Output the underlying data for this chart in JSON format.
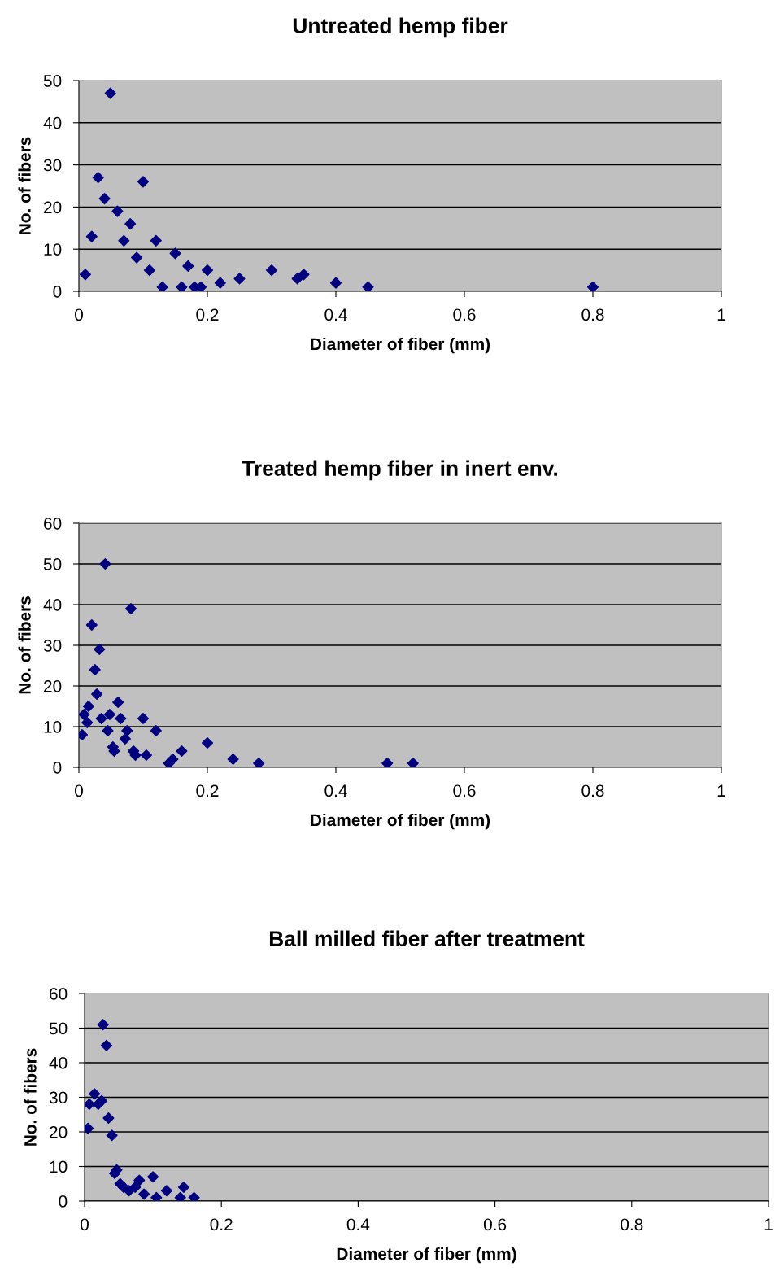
{
  "chart_data": [
    {
      "type": "scatter",
      "title": "Untreated hemp fiber",
      "xlabel": "Diameter of fiber (mm)",
      "ylabel": "No. of fibers",
      "xlim": [
        0,
        1
      ],
      "xticks": [
        0,
        0.2,
        0.4,
        0.6,
        0.8,
        1
      ],
      "ylim": [
        0,
        50
      ],
      "yticks": [
        0,
        10,
        20,
        30,
        40,
        50
      ],
      "grid": "y",
      "marker": "diamond",
      "legend": false,
      "series": [
        {
          "color": "#000080",
          "x": [
            0.049,
            0.03,
            0.1,
            0.04,
            0.06,
            0.08,
            0.02,
            0.07,
            0.12,
            0.09,
            0.15,
            0.01,
            0.11,
            0.17,
            0.2,
            0.13,
            0.16,
            0.18,
            0.19,
            0.22,
            0.25,
            0.3,
            0.34,
            0.35,
            0.4,
            0.45,
            0.8
          ],
          "values": [
            47,
            27,
            26,
            22,
            19,
            16,
            13,
            12,
            12,
            8,
            9,
            4,
            5,
            6,
            5,
            1,
            1,
            1,
            1,
            2,
            3,
            5,
            3,
            4,
            2,
            1,
            1
          ]
        }
      ]
    },
    {
      "type": "scatter",
      "title": "Treated hemp fiber in inert env.",
      "xlabel": "Diameter of fiber (mm)",
      "ylabel": "No. of fibers",
      "xlim": [
        0,
        1
      ],
      "xticks": [
        0,
        0.2,
        0.4,
        0.6,
        0.8,
        1
      ],
      "ylim": [
        0,
        60
      ],
      "yticks": [
        0,
        10,
        20,
        30,
        40,
        50,
        60
      ],
      "grid": "y",
      "marker": "diamond",
      "legend": false,
      "series": [
        {
          "color": "#000080",
          "x": [
            0.041,
            0.081,
            0.02,
            0.032,
            0.025,
            0.028,
            0.061,
            0.015,
            0.008,
            0.048,
            0.035,
            0.065,
            0.1,
            0.013,
            0.005,
            0.045,
            0.075,
            0.12,
            0.072,
            0.053,
            0.055,
            0.085,
            0.088,
            0.105,
            0.14,
            0.146,
            0.16,
            0.2,
            0.24,
            0.28,
            0.48,
            0.52
          ],
          "values": [
            50,
            39,
            35,
            29,
            24,
            18,
            16,
            15,
            13,
            13,
            12,
            12,
            12,
            11,
            8,
            9,
            9,
            9,
            7,
            5,
            4,
            4,
            3,
            3,
            1,
            2,
            4,
            6,
            2,
            1,
            1,
            1
          ]
        }
      ]
    },
    {
      "type": "scatter",
      "title": "Ball milled fiber after treatment",
      "xlabel": "Diameter of fiber (mm)",
      "ylabel": "No. of fibers",
      "xlim": [
        0,
        1
      ],
      "xticks": [
        0,
        0.2,
        0.4,
        0.6,
        0.8,
        1
      ],
      "ylim": [
        0,
        60
      ],
      "yticks": [
        0,
        10,
        20,
        30,
        40,
        50,
        60
      ],
      "grid": "y",
      "marker": "diamond",
      "legend": false,
      "series": [
        {
          "color": "#000080",
          "x": [
            0.027,
            0.032,
            0.0145,
            0.007,
            0.02,
            0.025,
            0.035,
            0.005,
            0.04,
            0.047,
            0.044,
            0.052,
            0.057,
            0.065,
            0.074,
            0.08,
            0.1,
            0.087,
            0.105,
            0.12,
            0.145,
            0.14,
            0.16
          ],
          "values": [
            51,
            45,
            31,
            28,
            28,
            29,
            24,
            21,
            19,
            9,
            8,
            5,
            4,
            3,
            4,
            6,
            7,
            2,
            1,
            3,
            4,
            1,
            1
          ]
        }
      ]
    }
  ]
}
